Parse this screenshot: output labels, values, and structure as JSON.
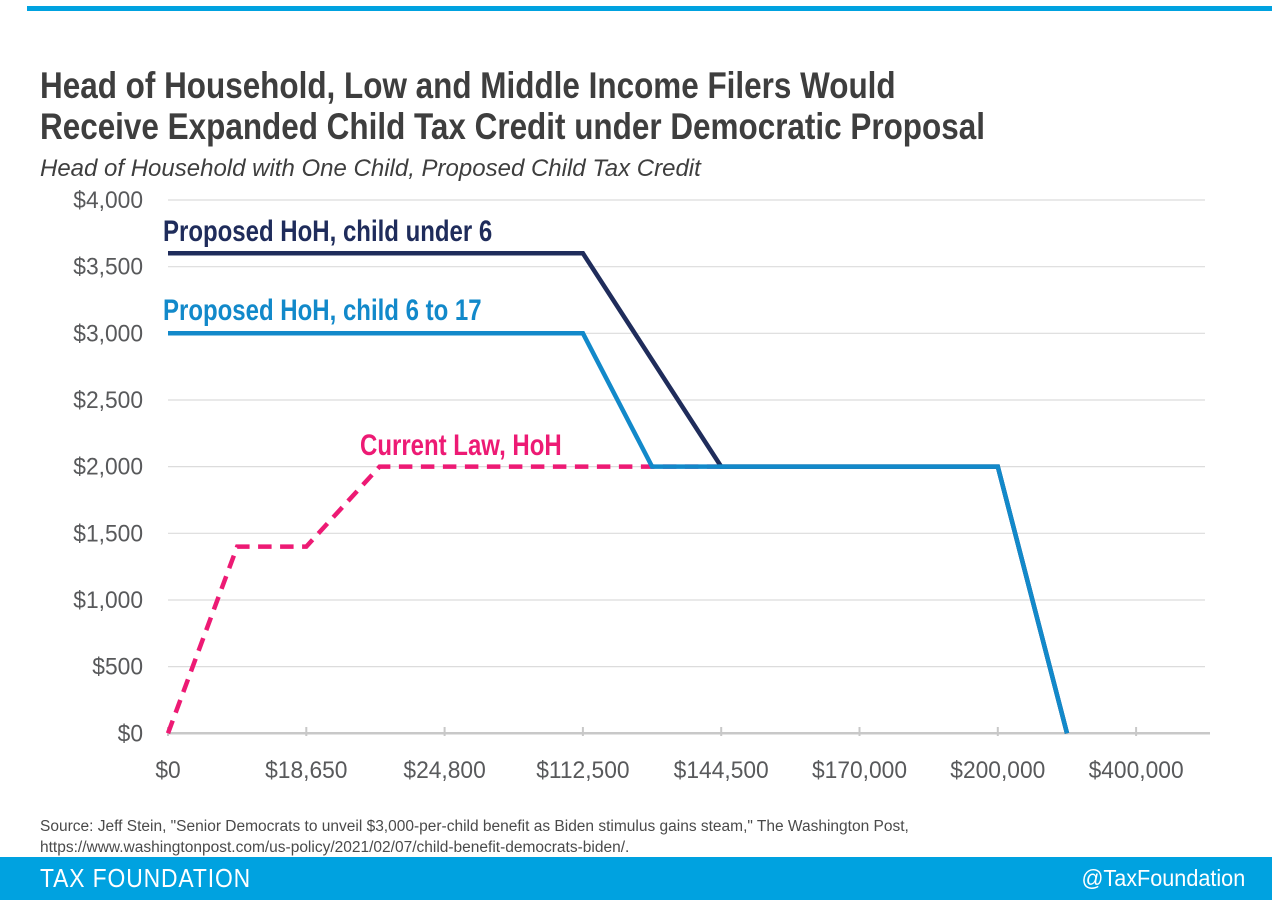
{
  "accent_color": "#00a2e0",
  "header": {
    "title_line1": "Head of Household, Low and Middle Income Filers Would",
    "title_line2": "Receive Expanded Child Tax Credit under Democratic Proposal",
    "subtitle": "Head of Household with One Child, Proposed Child Tax Credit"
  },
  "chart_data": {
    "type": "line",
    "title": "Head of Household, Low and Middle Income Filers Would Receive Expanded Child Tax Credit under Democratic Proposal",
    "subtitle": "Head of Household with One Child, Proposed Child Tax Credit",
    "x_axis": {
      "tick_labels": [
        "$0",
        "$18,650",
        "$24,800",
        "$112,500",
        "$144,500",
        "$170,000",
        "$200,000",
        "$400,000"
      ],
      "scale_note": "piecewise income scale, ticks evenly spaced"
    },
    "y_axis": {
      "tick_labels": [
        "$0",
        "$500",
        "$1,000",
        "$1,500",
        "$2,000",
        "$2,500",
        "$3,000",
        "$3,500",
        "$4,000"
      ],
      "min": 0,
      "max": 4000,
      "step": 500
    },
    "grid": true,
    "legend_position": "inline-annotations",
    "series": [
      {
        "name": "Current Law, HoH",
        "color": "#ed1a74",
        "line_style": "dashed",
        "points": [
          {
            "income": "$0",
            "credit": 0
          },
          {
            "income": "~$9,300",
            "credit": 1400
          },
          {
            "income": "$18,650",
            "credit": 1400
          },
          {
            "income": "~$21,900",
            "credit": 2000
          },
          {
            "income": "$144,500",
            "credit": 2000
          }
        ],
        "pts_tick_units": [
          [
            0,
            0
          ],
          [
            0.5,
            1400
          ],
          [
            1,
            1400
          ],
          [
            1.53,
            2000
          ],
          [
            4,
            2000
          ]
        ]
      },
      {
        "name": "Proposed HoH, child under 6",
        "color": "#1f2c5b",
        "line_style": "solid",
        "points": [
          {
            "income": "$0",
            "credit": 3600
          },
          {
            "income": "$112,500",
            "credit": 3600
          },
          {
            "income": "$144,500",
            "credit": 2000
          },
          {
            "income": "$200,000",
            "credit": 2000
          },
          {
            "income": "~$300,000",
            "credit": 0
          }
        ],
        "pts_tick_units": [
          [
            0,
            3600
          ],
          [
            3,
            3600
          ],
          [
            4,
            2000
          ],
          [
            6,
            2000
          ],
          [
            6.5,
            0
          ]
        ]
      },
      {
        "name": "Proposed HoH, child 6 to 17",
        "color": "#1289ca",
        "line_style": "solid",
        "points": [
          {
            "income": "$0",
            "credit": 3000
          },
          {
            "income": "$112,500",
            "credit": 3000
          },
          {
            "income": "~$132,500",
            "credit": 2000
          },
          {
            "income": "$200,000",
            "credit": 2000
          },
          {
            "income": "~$300,000",
            "credit": 0
          }
        ],
        "pts_tick_units": [
          [
            0,
            3000
          ],
          [
            3,
            3000
          ],
          [
            3.5,
            2000
          ],
          [
            6,
            2000
          ],
          [
            6.5,
            0
          ]
        ]
      }
    ],
    "annotations": [
      {
        "text": "Proposed HoH, child under 6",
        "color": "#1f2c5b",
        "x": 163,
        "baseline_y": 241
      },
      {
        "text": "Proposed HoH, child 6 to 17",
        "color": "#1289ca",
        "x": 163,
        "baseline_y": 320
      },
      {
        "text": "Current Law, HoH",
        "color": "#ed1a74",
        "x": 360,
        "baseline_y": 455
      }
    ]
  },
  "source": {
    "line1": "Source: Jeff Stein, \"Senior Democrats to unveil $3,000-per-child benefit as Biden stimulus gains steam,\" The Washington Post,",
    "line2": "https://www.washingtonpost.com/us-policy/2021/02/07/child-benefit-democrats-biden/."
  },
  "footer": {
    "brand": "TAX FOUNDATION",
    "handle": "@TaxFoundation",
    "bar_color": "#00a2e0"
  }
}
